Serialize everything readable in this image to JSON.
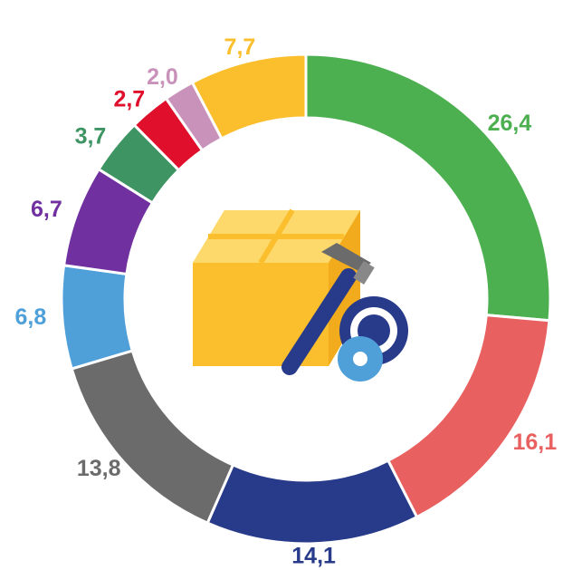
{
  "chart_data": {
    "type": "donut",
    "values": [
      26.4,
      16.1,
      14.1,
      13.8,
      6.8,
      6.7,
      3.7,
      2.7,
      2.0,
      7.7
    ],
    "value_labels": [
      "26,4",
      "16,1",
      "14,1",
      "13,8",
      "6,8",
      "6,7",
      "3,7",
      "2,7",
      "2,0",
      "7,7"
    ],
    "colors": [
      "#4caf50",
      "#e96060",
      "#283a8a",
      "#6b6b6b",
      "#4f9fd9",
      "#7030a0",
      "#3f9464",
      "#e0102d",
      "#c992bb",
      "#fbbf2d"
    ]
  }
}
